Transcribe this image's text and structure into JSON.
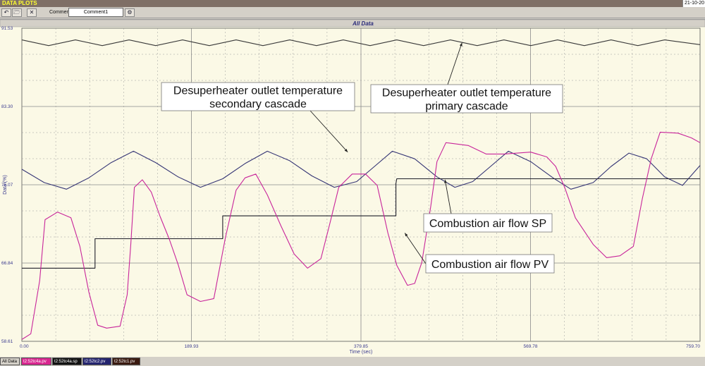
{
  "app": {
    "title": "DATA PLOTS",
    "date": "21-10-20"
  },
  "toolbar": {
    "comment_label": "Comment",
    "comment_value": "Comment1"
  },
  "colors": {
    "primary": "#3a3a3a",
    "secondary": "#353575",
    "sp": "#1e1e2a",
    "pv": "#c8249a",
    "background": "#fbf9e6",
    "axis_text": "#3b3b8f"
  },
  "tabs": [
    {
      "label": "All Data",
      "color": "#d4d0c8",
      "text": "#000000"
    },
    {
      "label": "t2:52tc4a.pv",
      "color": "#d8268f",
      "text": "#ffffff"
    },
    {
      "label": "t2:52tc4a.sp",
      "color": "#121212",
      "text": "#ffffff"
    },
    {
      "label": "t2:52tc2.pv",
      "color": "#24246e",
      "text": "#ffffff"
    },
    {
      "label": "t2:52tc1.pv",
      "color": "#3a1a10",
      "text": "#ffffff"
    }
  ],
  "chart_data": {
    "type": "line",
    "title": "All Data",
    "xlabel": "Time (sec)",
    "ylabel": "Data (%)",
    "xlim": [
      0,
      759.7
    ],
    "ylim": [
      58.61,
      91.53
    ],
    "x_ticks": [
      "0.00",
      "189.93",
      "379.85",
      "569.78",
      "759.70"
    ],
    "y_ticks": [
      "58.61",
      "66.84",
      "75.07",
      "83.30",
      "91.53"
    ],
    "grid": true,
    "series": [
      {
        "name": "t2:52tc1.pv",
        "color": "#3a3a3a",
        "points": [
          [
            0,
            90.3
          ],
          [
            30,
            89.7
          ],
          [
            60,
            90.3
          ],
          [
            90,
            89.7
          ],
          [
            120,
            90.3
          ],
          [
            150,
            89.7
          ],
          [
            180,
            90.3
          ],
          [
            210,
            89.7
          ],
          [
            240,
            90.3
          ],
          [
            270,
            89.7
          ],
          [
            300,
            90.3
          ],
          [
            330,
            89.7
          ],
          [
            360,
            90.3
          ],
          [
            390,
            89.7
          ],
          [
            420,
            90.3
          ],
          [
            450,
            89.7
          ],
          [
            480,
            90.3
          ],
          [
            510,
            89.7
          ],
          [
            540,
            90.3
          ],
          [
            570,
            89.7
          ],
          [
            600,
            90.3
          ],
          [
            630,
            89.7
          ],
          [
            660,
            90.3
          ],
          [
            690,
            89.7
          ],
          [
            720,
            90.3
          ],
          [
            759.7,
            89.8
          ]
        ]
      },
      {
        "name": "t2:52tc2.pv",
        "color": "#353575",
        "points": [
          [
            0,
            76.7
          ],
          [
            25,
            75.3
          ],
          [
            50,
            74.6
          ],
          [
            75,
            75.8
          ],
          [
            100,
            77.4
          ],
          [
            125,
            78.6
          ],
          [
            150,
            77.4
          ],
          [
            175,
            75.9
          ],
          [
            200,
            74.8
          ],
          [
            225,
            75.7
          ],
          [
            250,
            77.3
          ],
          [
            275,
            78.6
          ],
          [
            300,
            77.6
          ],
          [
            325,
            76.0
          ],
          [
            350,
            74.8
          ],
          [
            375,
            75.4
          ],
          [
            395,
            77.0
          ],
          [
            415,
            78.6
          ],
          [
            440,
            77.8
          ],
          [
            465,
            75.9
          ],
          [
            485,
            74.8
          ],
          [
            505,
            75.4
          ],
          [
            525,
            77.0
          ],
          [
            545,
            78.6
          ],
          [
            570,
            77.5
          ],
          [
            595,
            75.8
          ],
          [
            615,
            74.6
          ],
          [
            640,
            75.3
          ],
          [
            660,
            77.0
          ],
          [
            680,
            78.4
          ],
          [
            700,
            77.8
          ],
          [
            720,
            75.9
          ],
          [
            740,
            75.0
          ],
          [
            759.7,
            77.1
          ]
        ]
      },
      {
        "name": "t2:52tc4a.sp",
        "color": "#1e1e2a",
        "points": [
          [
            0,
            66.3
          ],
          [
            82,
            66.3
          ],
          [
            82,
            69.4
          ],
          [
            225,
            69.4
          ],
          [
            225,
            71.8
          ],
          [
            419,
            71.8
          ],
          [
            419,
            75.2
          ],
          [
            420,
            75.7
          ],
          [
            759.7,
            75.7
          ]
        ]
      },
      {
        "name": "t2:52tc4a.pv",
        "color": "#c8249a",
        "points": [
          [
            0,
            58.8
          ],
          [
            10,
            59.4
          ],
          [
            20,
            65.0
          ],
          [
            26,
            71.4
          ],
          [
            40,
            72.2
          ],
          [
            55,
            71.6
          ],
          [
            65,
            68.6
          ],
          [
            75,
            63.8
          ],
          [
            85,
            60.3
          ],
          [
            95,
            60.0
          ],
          [
            110,
            60.2
          ],
          [
            118,
            63.5
          ],
          [
            122,
            68.8
          ],
          [
            126,
            74.8
          ],
          [
            135,
            75.6
          ],
          [
            145,
            74.3
          ],
          [
            155,
            71.7
          ],
          [
            165,
            69.4
          ],
          [
            175,
            66.7
          ],
          [
            185,
            63.5
          ],
          [
            200,
            62.8
          ],
          [
            215,
            63.1
          ],
          [
            228,
            69.5
          ],
          [
            240,
            74.5
          ],
          [
            250,
            75.8
          ],
          [
            262,
            76.2
          ],
          [
            275,
            74.0
          ],
          [
            290,
            70.8
          ],
          [
            305,
            67.8
          ],
          [
            320,
            66.3
          ],
          [
            335,
            67.3
          ],
          [
            345,
            71.0
          ],
          [
            355,
            74.8
          ],
          [
            370,
            76.2
          ],
          [
            385,
            76.2
          ],
          [
            398,
            75.0
          ],
          [
            410,
            70.0
          ],
          [
            420,
            66.6
          ],
          [
            432,
            64.5
          ],
          [
            440,
            64.7
          ],
          [
            448,
            66.9
          ],
          [
            458,
            72.8
          ],
          [
            465,
            77.5
          ],
          [
            475,
            79.5
          ],
          [
            500,
            79.2
          ],
          [
            520,
            78.3
          ],
          [
            540,
            78.3
          ],
          [
            570,
            78.5
          ],
          [
            588,
            78.0
          ],
          [
            598,
            77.0
          ],
          [
            608,
            74.8
          ],
          [
            620,
            71.6
          ],
          [
            640,
            68.8
          ],
          [
            655,
            67.4
          ],
          [
            670,
            67.6
          ],
          [
            685,
            68.6
          ],
          [
            695,
            73.6
          ],
          [
            705,
            77.8
          ],
          [
            715,
            80.6
          ],
          [
            735,
            80.5
          ],
          [
            750,
            80.0
          ],
          [
            759.7,
            79.5
          ]
        ]
      }
    ],
    "annotations": [
      {
        "text": [
          "Desuperheater outlet temperature",
          "secondary cascade"
        ],
        "target": [
          365,
          78.5
        ]
      },
      {
        "text": [
          "Desuperheater outlet temperature",
          "primary cascade"
        ],
        "target": [
          493,
          90.0
        ]
      },
      {
        "text": [
          "Combustion air flow SP"
        ],
        "target": [
          474,
          75.6
        ]
      },
      {
        "text": [
          "Combustion air flow PV"
        ],
        "target": [
          429,
          70.0
        ]
      }
    ]
  }
}
